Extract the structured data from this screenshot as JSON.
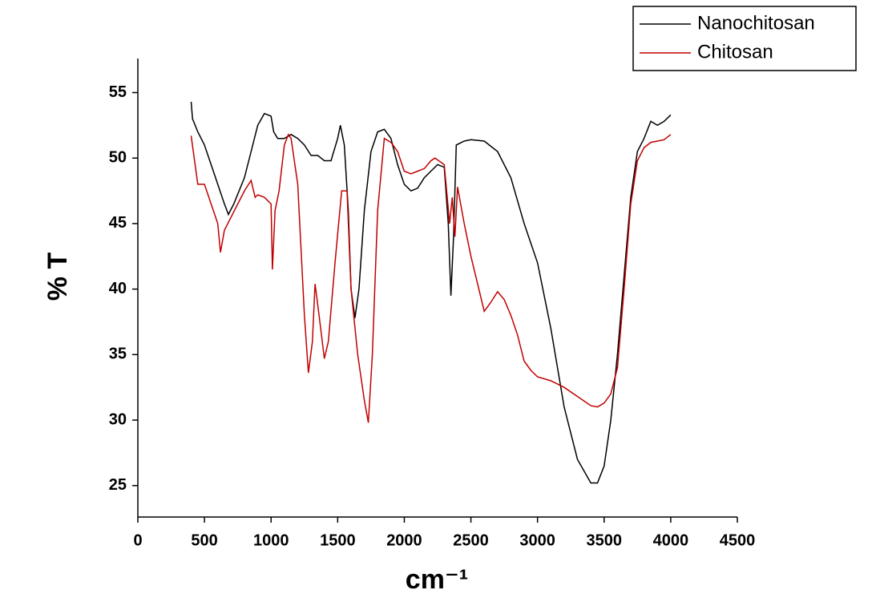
{
  "chart_data": {
    "type": "line",
    "x_label": "cm⁻¹",
    "y_label": "% T",
    "xlim": [
      0,
      4500
    ],
    "xticks": [
      0,
      500,
      1000,
      1500,
      2000,
      2500,
      3000,
      3500,
      4000,
      4500
    ],
    "ylim": [
      22.6,
      57.6
    ],
    "yticks": [
      25,
      30,
      35,
      40,
      45,
      50,
      55
    ],
    "legend": "top-right",
    "series": [
      {
        "name": "Nanochitosan",
        "color": "#000000",
        "x": [
          400,
          410,
          450,
          500,
          550,
          600,
          650,
          680,
          720,
          800,
          850,
          900,
          950,
          1000,
          1020,
          1050,
          1100,
          1150,
          1200,
          1250,
          1300,
          1350,
          1400,
          1450,
          1500,
          1520,
          1550,
          1580,
          1600,
          1630,
          1660,
          1700,
          1750,
          1800,
          1850,
          1900,
          1950,
          2000,
          2050,
          2100,
          2150,
          2200,
          2250,
          2300,
          2330,
          2350,
          2370,
          2390,
          2450,
          2500,
          2600,
          2700,
          2800,
          2900,
          3000,
          3100,
          3200,
          3300,
          3400,
          3450,
          3500,
          3550,
          3600,
          3650,
          3700,
          3750,
          3800,
          3850,
          3900,
          3950,
          4000
        ],
        "values": [
          54.3,
          53,
          52,
          51,
          49.5,
          48,
          46.5,
          45.7,
          46.5,
          48.5,
          50.5,
          52.5,
          53.4,
          53.2,
          52,
          51.5,
          51.5,
          51.8,
          51.5,
          51,
          50.2,
          50.2,
          49.8,
          49.8,
          51.5,
          52.5,
          51,
          46,
          40,
          37.8,
          40,
          46,
          50.5,
          52,
          52.2,
          51.5,
          49.5,
          48,
          47.5,
          47.7,
          48.5,
          49,
          49.5,
          49.3,
          45,
          39.5,
          44,
          51,
          51.3,
          51.4,
          51.3,
          50.5,
          48.5,
          45,
          42,
          37,
          31,
          27,
          25.2,
          25.2,
          26.5,
          30,
          35,
          41,
          47,
          50.5,
          51.5,
          52.8,
          52.5,
          52.8,
          53.3
        ]
      },
      {
        "name": "Chitosan",
        "color": "#c00000",
        "x": [
          400,
          450,
          500,
          550,
          600,
          620,
          650,
          700,
          750,
          800,
          850,
          880,
          900,
          950,
          1000,
          1010,
          1030,
          1060,
          1100,
          1130,
          1150,
          1200,
          1250,
          1280,
          1310,
          1330,
          1360,
          1400,
          1430,
          1480,
          1530,
          1570,
          1600,
          1650,
          1700,
          1730,
          1760,
          1800,
          1850,
          1900,
          1950,
          2000,
          2050,
          2100,
          2150,
          2200,
          2230,
          2300,
          2340,
          2360,
          2380,
          2400,
          2450,
          2500,
          2600,
          2650,
          2700,
          2750,
          2800,
          2850,
          2900,
          2950,
          3000,
          3100,
          3200,
          3300,
          3400,
          3450,
          3500,
          3550,
          3600,
          3650,
          3700,
          3750,
          3800,
          3850,
          3900,
          3950,
          4000
        ],
        "values": [
          51.7,
          48,
          48,
          46.5,
          45,
          42.8,
          44.5,
          45.5,
          46.5,
          47.5,
          48.3,
          47,
          47.2,
          47,
          46.5,
          41.5,
          46,
          47.5,
          51,
          51.8,
          51.5,
          48,
          38,
          33.6,
          36,
          40.4,
          38,
          34.7,
          36,
          42,
          47.5,
          47.5,
          40,
          35,
          31.5,
          29.8,
          35,
          46,
          51.5,
          51.2,
          50.5,
          49,
          48.8,
          49,
          49.2,
          49.8,
          50,
          49.5,
          45,
          47,
          44,
          47.8,
          45,
          42.5,
          38.3,
          39,
          39.8,
          39.2,
          38,
          36.5,
          34.5,
          33.8,
          33.3,
          33,
          32.5,
          31.8,
          31.1,
          31,
          31.3,
          32,
          34,
          40,
          46.5,
          49.8,
          50.8,
          51.2,
          51.3,
          51.4,
          51.8
        ]
      }
    ]
  }
}
